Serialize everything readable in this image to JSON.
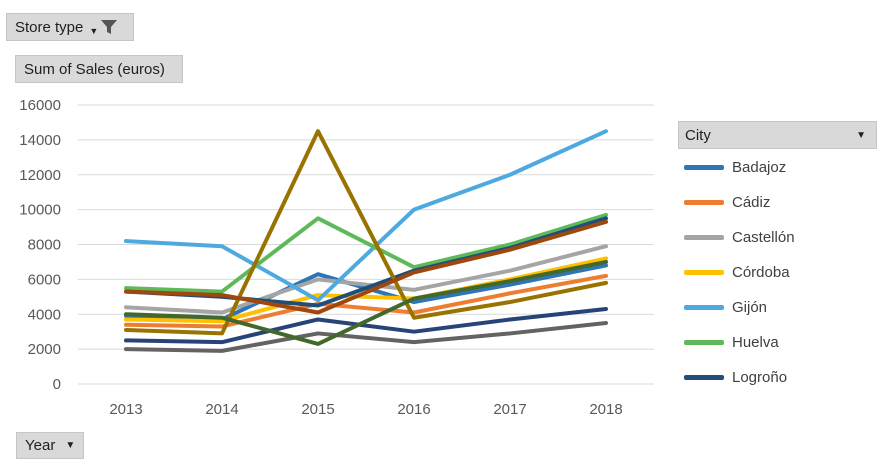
{
  "pivot": {
    "filter_label": "Store type",
    "filter_icon": "funnel-icon",
    "values_label": "Sum of Sales (euros)",
    "axis_label": "Year",
    "legend_label": "City"
  },
  "chart_data": {
    "type": "line",
    "title": "",
    "xlabel": "",
    "ylabel": "",
    "categories": [
      "2013",
      "2014",
      "2015",
      "2016",
      "2017",
      "2018"
    ],
    "ylim": [
      0,
      16000
    ],
    "yticks": [
      0,
      2000,
      4000,
      6000,
      8000,
      10000,
      12000,
      14000,
      16000
    ],
    "grid": true,
    "legend_position": "right",
    "legend_entries": [
      "Badajoz",
      "Cádiz",
      "Castellón",
      "Córdoba",
      "Gijón",
      "Huelva",
      "Logroño"
    ],
    "series": [
      {
        "name": "Badajoz",
        "color": "#2e75b6",
        "values": [
          3900,
          3700,
          6300,
          4700,
          5700,
          6800
        ],
        "legend": true
      },
      {
        "name": "Cádiz",
        "color": "#ed7d31",
        "values": [
          3400,
          3300,
          4600,
          4100,
          5200,
          6200
        ],
        "legend": true
      },
      {
        "name": "Castellón",
        "color": "#a5a5a5",
        "values": [
          4400,
          4100,
          6000,
          5400,
          6500,
          7900
        ],
        "legend": true
      },
      {
        "name": "Córdoba",
        "color": "#ffc000",
        "values": [
          3700,
          3600,
          5100,
          4900,
          6000,
          7200
        ],
        "legend": true
      },
      {
        "name": "Gijón",
        "color": "#4ea9e0",
        "values": [
          8200,
          7900,
          4800,
          10000,
          12000,
          14500
        ],
        "legend": true
      },
      {
        "name": "Huelva",
        "color": "#5eb95a",
        "values": [
          5500,
          5300,
          9500,
          6700,
          8000,
          9700
        ],
        "legend": true
      },
      {
        "name": "Logroño",
        "color": "#1f4e79",
        "values": [
          5300,
          5000,
          4500,
          6500,
          7800,
          9500
        ],
        "legend": true
      },
      {
        "color": "#264478",
        "values": [
          2500,
          2400,
          3700,
          3000,
          3700,
          4300
        ],
        "legend": false
      },
      {
        "color": "#636363",
        "values": [
          2000,
          1900,
          2900,
          2400,
          2900,
          3500
        ],
        "legend": false
      },
      {
        "color": "#997300",
        "values": [
          3100,
          2900,
          14500,
          3800,
          4700,
          5800
        ],
        "legend": false
      },
      {
        "color": "#43682b",
        "values": [
          4000,
          3800,
          2300,
          4900,
          5900,
          7000
        ],
        "legend": false
      },
      {
        "color": "#9e480e",
        "values": [
          5300,
          5100,
          4100,
          6400,
          7700,
          9300
        ],
        "legend": false
      }
    ]
  }
}
